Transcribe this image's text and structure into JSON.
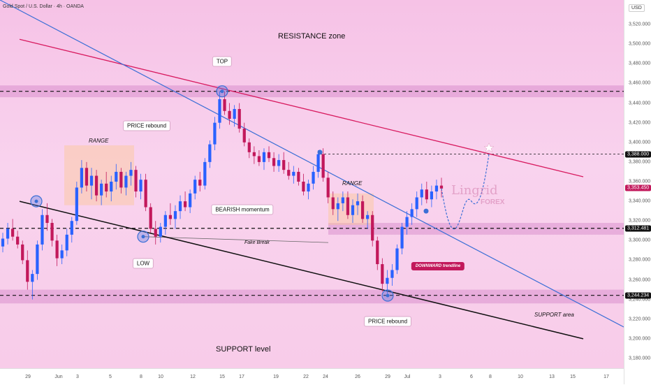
{
  "header": {
    "title": "Gold Spot / U.S. Dollar · 4h · OANDA"
  },
  "currency": "USD",
  "chart_data": {
    "type": "candlestick",
    "symbol": "Gold Spot / U.S. Dollar",
    "timeframe": "4h",
    "source": "OANDA",
    "y_axis": {
      "ylim": [
        3170,
        3545
      ],
      "ticks": [
        "3,520.000",
        "3,500.000",
        "3,480.000",
        "3,460.000",
        "3,440.000",
        "3,420.000",
        "3,400.000",
        "3,380.000",
        "3,360.000",
        "3,340.000",
        "3,320.000",
        "3,300.000",
        "3,280.000",
        "3,260.000",
        "3,240.000",
        "3,220.000",
        "3,200.000",
        "3,180.000"
      ]
    },
    "x_axis": {
      "ticks": [
        "29",
        "Jun",
        "3",
        "5",
        "8",
        "10",
        "12",
        "15",
        "17",
        "19",
        "22",
        "24",
        "26",
        "29",
        "Jul",
        "3",
        "6",
        "8",
        "10",
        "13",
        "15",
        "17"
      ]
    },
    "price_tags": [
      {
        "label": "3,388.000",
        "value": 3388,
        "color": "#111111"
      },
      {
        "label": "3,353.450",
        "value": 3353.45,
        "color": "#c2185b"
      },
      {
        "label": "3,312.481",
        "value": 3312.481,
        "color": "#111111"
      },
      {
        "label": "3,244.234",
        "value": 3244.234,
        "color": "#111111"
      }
    ],
    "annotations": {
      "resistance": "RESISTANCE zone",
      "top": "TOP",
      "range1": "RANGE",
      "range2": "RANGE",
      "price_rebound_top": "PRICE rebound",
      "bearish": "BEARISH momentum",
      "fake_break": "Fake Break",
      "low": "LOW",
      "downward_trendline": "DOWNWARD trendline",
      "price_rebound_bottom": "PRICE rebound",
      "support_area": "SUPPORT area",
      "support_level": "SUPPORT level"
    },
    "logo": {
      "name": "Lingrid",
      "sub": "FOREX"
    },
    "candles": [
      [
        3294,
        3308,
        3288,
        3302
      ],
      [
        3302,
        3318,
        3296,
        3312
      ],
      [
        3312,
        3322,
        3300,
        3304
      ],
      [
        3304,
        3310,
        3292,
        3296
      ],
      [
        3296,
        3300,
        3276,
        3280
      ],
      [
        3280,
        3290,
        3250,
        3258
      ],
      [
        3258,
        3270,
        3240,
        3266
      ],
      [
        3266,
        3300,
        3260,
        3296
      ],
      [
        3296,
        3332,
        3290,
        3326
      ],
      [
        3326,
        3338,
        3310,
        3318
      ],
      [
        3318,
        3322,
        3294,
        3300
      ],
      [
        3300,
        3306,
        3274,
        3282
      ],
      [
        3282,
        3296,
        3276,
        3290
      ],
      [
        3290,
        3312,
        3284,
        3306
      ],
      [
        3306,
        3324,
        3298,
        3320
      ],
      [
        3320,
        3360,
        3316,
        3354
      ],
      [
        3354,
        3382,
        3348,
        3374
      ],
      [
        3374,
        3380,
        3350,
        3356
      ],
      [
        3356,
        3374,
        3342,
        3366
      ],
      [
        3366,
        3372,
        3340,
        3346
      ],
      [
        3346,
        3362,
        3336,
        3358
      ],
      [
        3358,
        3370,
        3344,
        3350
      ],
      [
        3350,
        3366,
        3340,
        3360
      ],
      [
        3360,
        3378,
        3352,
        3370
      ],
      [
        3370,
        3374,
        3348,
        3354
      ],
      [
        3354,
        3370,
        3346,
        3366
      ],
      [
        3366,
        3380,
        3356,
        3372
      ],
      [
        3372,
        3376,
        3344,
        3350
      ],
      [
        3350,
        3368,
        3342,
        3362
      ],
      [
        3362,
        3368,
        3330,
        3334
      ],
      [
        3334,
        3338,
        3308,
        3312
      ],
      [
        3312,
        3320,
        3296,
        3304
      ],
      [
        3304,
        3318,
        3298,
        3314
      ],
      [
        3314,
        3330,
        3306,
        3326
      ],
      [
        3326,
        3338,
        3316,
        3322
      ],
      [
        3322,
        3336,
        3312,
        3330
      ],
      [
        3330,
        3346,
        3322,
        3340
      ],
      [
        3340,
        3350,
        3330,
        3334
      ],
      [
        3334,
        3352,
        3328,
        3348
      ],
      [
        3348,
        3366,
        3342,
        3362
      ],
      [
        3362,
        3370,
        3350,
        3356
      ],
      [
        3356,
        3384,
        3352,
        3380
      ],
      [
        3380,
        3402,
        3374,
        3398
      ],
      [
        3398,
        3426,
        3392,
        3420
      ],
      [
        3420,
        3452,
        3414,
        3444
      ],
      [
        3444,
        3452,
        3428,
        3432
      ],
      [
        3432,
        3440,
        3418,
        3424
      ],
      [
        3424,
        3438,
        3416,
        3434
      ],
      [
        3434,
        3440,
        3410,
        3414
      ],
      [
        3414,
        3420,
        3396,
        3400
      ],
      [
        3400,
        3404,
        3384,
        3390
      ],
      [
        3390,
        3396,
        3378,
        3386
      ],
      [
        3386,
        3392,
        3376,
        3380
      ],
      [
        3380,
        3394,
        3372,
        3390
      ],
      [
        3390,
        3396,
        3380,
        3384
      ],
      [
        3384,
        3390,
        3370,
        3376
      ],
      [
        3376,
        3388,
        3370,
        3382
      ],
      [
        3382,
        3390,
        3368,
        3372
      ],
      [
        3372,
        3380,
        3362,
        3366
      ],
      [
        3366,
        3376,
        3358,
        3370
      ],
      [
        3370,
        3374,
        3356,
        3360
      ],
      [
        3360,
        3368,
        3346,
        3350
      ],
      [
        3350,
        3362,
        3342,
        3358
      ],
      [
        3358,
        3376,
        3352,
        3370
      ],
      [
        3370,
        3392,
        3364,
        3388
      ],
      [
        3388,
        3394,
        3360,
        3364
      ],
      [
        3364,
        3370,
        3338,
        3344
      ],
      [
        3344,
        3350,
        3326,
        3332
      ],
      [
        3332,
        3344,
        3320,
        3338
      ],
      [
        3338,
        3350,
        3330,
        3344
      ],
      [
        3344,
        3350,
        3322,
        3326
      ],
      [
        3326,
        3342,
        3318,
        3336
      ],
      [
        3336,
        3348,
        3326,
        3340
      ],
      [
        3340,
        3346,
        3318,
        3322
      ],
      [
        3322,
        3330,
        3312,
        3326
      ],
      [
        3326,
        3330,
        3294,
        3300
      ],
      [
        3300,
        3304,
        3270,
        3276
      ],
      [
        3276,
        3282,
        3248,
        3256
      ],
      [
        3256,
        3270,
        3246,
        3262
      ],
      [
        3262,
        3276,
        3254,
        3270
      ],
      [
        3270,
        3296,
        3266,
        3292
      ],
      [
        3292,
        3318,
        3286,
        3314
      ],
      [
        3314,
        3330,
        3306,
        3324
      ],
      [
        3324,
        3338,
        3316,
        3332
      ],
      [
        3332,
        3350,
        3324,
        3344
      ],
      [
        3344,
        3358,
        3336,
        3352
      ],
      [
        3352,
        3360,
        3338,
        3342
      ],
      [
        3342,
        3356,
        3334,
        3350
      ],
      [
        3350,
        3362,
        3342,
        3356
      ],
      [
        3356,
        3364,
        3344,
        3353
      ]
    ]
  }
}
